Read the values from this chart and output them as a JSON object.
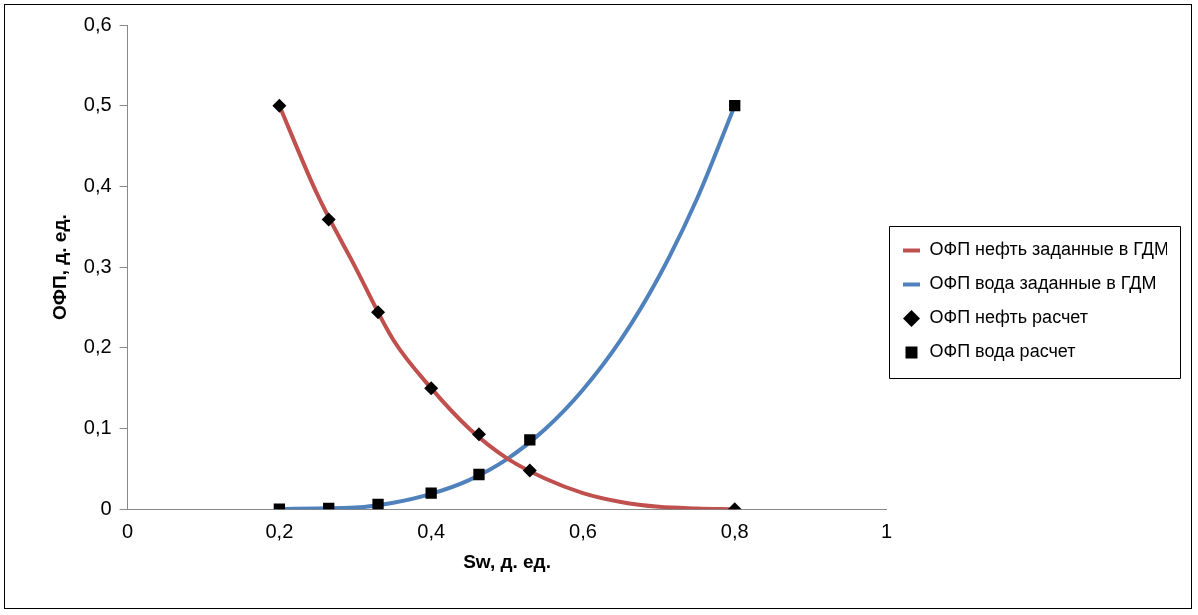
{
  "chart_data": {
    "type": "line",
    "xlabel": "Sw, д. ед.",
    "ylabel": "ОФП, д. ед.",
    "xlim": [
      0,
      1
    ],
    "xticks": [
      {
        "value": 0,
        "label": "0"
      },
      {
        "value": 0.2,
        "label": "0,2"
      },
      {
        "value": 0.4,
        "label": "0,4"
      },
      {
        "value": 0.6,
        "label": "0,6"
      },
      {
        "value": 0.8,
        "label": "0,8"
      },
      {
        "value": 1,
        "label": "1"
      }
    ],
    "ylim": [
      0,
      0.6
    ],
    "yticks": [
      {
        "value": 0,
        "label": "0"
      },
      {
        "value": 0.1,
        "label": "0,1"
      },
      {
        "value": 0.2,
        "label": "0,2"
      },
      {
        "value": 0.3,
        "label": "0,3"
      },
      {
        "value": 0.4,
        "label": "0,4"
      },
      {
        "value": 0.5,
        "label": "0,5"
      },
      {
        "value": 0.6,
        "label": "0,6"
      }
    ],
    "grid": false,
    "legend": "right",
    "series": [
      {
        "name": "ОФП нефть заданные в ГДМ",
        "type": "line",
        "color": "#c0504d",
        "marker": "none",
        "line_style": "solid",
        "x": [
          0.2,
          0.25,
          0.3,
          0.35,
          0.4,
          0.45,
          0.5,
          0.55,
          0.6,
          0.65,
          0.7,
          0.75,
          0.8
        ],
        "values": [
          0.5,
          0.39,
          0.3,
          0.21,
          0.15,
          0.1,
          0.063,
          0.038,
          0.02,
          0.009,
          0.003,
          0.001,
          0
        ]
      },
      {
        "name": "ОФП вода заданные в ГДМ",
        "type": "line",
        "color": "#4f81bd",
        "marker": "none",
        "line_style": "solid",
        "x": [
          0.2,
          0.25,
          0.3,
          0.35,
          0.4,
          0.45,
          0.5,
          0.55,
          0.6,
          0.65,
          0.7,
          0.75,
          0.8
        ],
        "values": [
          0,
          0.001,
          0.002,
          0.008,
          0.019,
          0.036,
          0.062,
          0.099,
          0.148,
          0.21,
          0.288,
          0.384,
          0.5
        ]
      },
      {
        "name": "ОФП нефть расчет",
        "type": "scatter",
        "color": "#000000",
        "marker": "diamond",
        "x": [
          0.2,
          0.265,
          0.33,
          0.4,
          0.463,
          0.53,
          0.8
        ],
        "values": [
          0.5,
          0.359,
          0.244,
          0.15,
          0.093,
          0.048,
          0
        ]
      },
      {
        "name": "ОФП вода расчет",
        "type": "scatter",
        "color": "#000000",
        "marker": "square",
        "x": [
          0.2,
          0.265,
          0.33,
          0.4,
          0.463,
          0.53,
          0.8
        ],
        "values": [
          0,
          0.001,
          0.006,
          0.02,
          0.043,
          0.086,
          0.5
        ]
      }
    ]
  }
}
